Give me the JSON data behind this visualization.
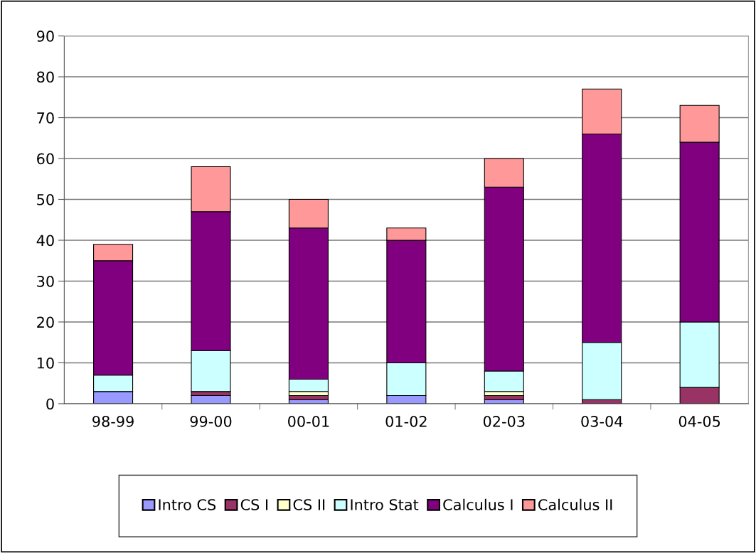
{
  "chart_data": {
    "type": "bar",
    "stacked": true,
    "categories": [
      "98-99",
      "99-00",
      "00-01",
      "01-02",
      "02-03",
      "03-04",
      "04-05"
    ],
    "series": [
      {
        "name": "Intro CS",
        "color": "#9999ff",
        "values": [
          3,
          2,
          1,
          2,
          1,
          0,
          0
        ]
      },
      {
        "name": "CS I",
        "color": "#993366",
        "values": [
          0,
          1,
          1,
          0,
          1,
          1,
          4
        ]
      },
      {
        "name": "CS II",
        "color": "#ffffcc",
        "values": [
          0,
          0,
          1,
          0,
          1,
          0,
          0
        ]
      },
      {
        "name": "Intro Stat",
        "color": "#ccffff",
        "values": [
          4,
          10,
          3,
          8,
          5,
          14,
          16
        ]
      },
      {
        "name": "Calculus I",
        "color": "#800080",
        "values": [
          28,
          34,
          37,
          30,
          45,
          51,
          44
        ]
      },
      {
        "name": "Calculus II",
        "color": "#ff9999",
        "values": [
          4,
          11,
          7,
          3,
          7,
          11,
          9
        ]
      }
    ],
    "ylim": [
      0,
      90
    ],
    "yticks": [
      0,
      10,
      20,
      30,
      40,
      50,
      60,
      70,
      80,
      90
    ],
    "grid": "y",
    "legend": "bottom"
  }
}
